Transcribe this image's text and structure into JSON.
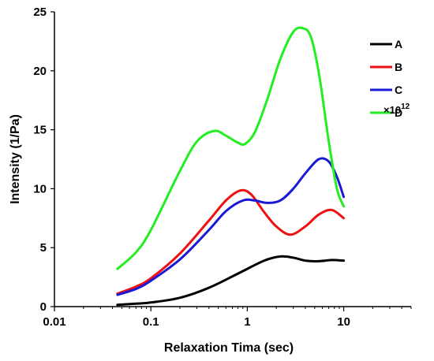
{
  "chart_data": {
    "type": "line",
    "xlabel": "Relaxation Tima (sec)",
    "ylabel": "Intensity (1/Pa)",
    "y_multiplier": "×10",
    "y_multiplier_exp": "12",
    "x_scale": "log",
    "xlim": [
      0.01,
      50
    ],
    "ylim": [
      0,
      25
    ],
    "x_ticks": [
      0.01,
      0.1,
      1,
      10
    ],
    "x_tick_labels": [
      "0.01",
      "0.1",
      "1",
      "10"
    ],
    "y_ticks": [
      0,
      5,
      10,
      15,
      20,
      25
    ],
    "y_tick_labels": [
      "0",
      "5",
      "10",
      "15",
      "20",
      "25"
    ],
    "grid": false,
    "legend_position": "top-right",
    "series": [
      {
        "name": "A",
        "color": "#000000",
        "x": [
          0.045,
          0.07,
          0.1,
          0.2,
          0.4,
          0.8,
          1.5,
          2.2,
          3.0,
          4.0,
          5.5,
          7.5,
          10
        ],
        "y": [
          0.15,
          0.25,
          0.35,
          0.75,
          1.6,
          2.8,
          3.9,
          4.25,
          4.15,
          3.9,
          3.85,
          3.95,
          3.9
        ]
      },
      {
        "name": "B",
        "color": "#ee1111",
        "x": [
          0.045,
          0.07,
          0.1,
          0.2,
          0.4,
          0.6,
          0.85,
          1.1,
          1.5,
          2.0,
          2.8,
          4.0,
          5.5,
          7.5,
          10
        ],
        "y": [
          1.1,
          1.7,
          2.4,
          4.5,
          7.3,
          9.0,
          9.85,
          9.5,
          8.0,
          6.8,
          6.1,
          6.8,
          7.8,
          8.2,
          7.5
        ]
      },
      {
        "name": "C",
        "color": "#1a1ad4",
        "x": [
          0.045,
          0.07,
          0.1,
          0.2,
          0.4,
          0.6,
          0.9,
          1.2,
          1.6,
          2.2,
          3.0,
          4.0,
          5.5,
          7.0,
          8.5,
          10
        ],
        "y": [
          1.0,
          1.5,
          2.2,
          4.0,
          6.5,
          8.1,
          9.0,
          9.0,
          8.8,
          9.0,
          10.0,
          11.3,
          12.5,
          12.3,
          11.0,
          9.3
        ]
      },
      {
        "name": "D",
        "color": "#22ee22",
        "x": [
          0.045,
          0.07,
          0.1,
          0.2,
          0.3,
          0.45,
          0.6,
          0.8,
          0.95,
          1.2,
          1.6,
          2.2,
          3.0,
          3.8,
          4.6,
          5.6,
          7.0,
          8.5,
          10
        ],
        "y": [
          3.2,
          4.6,
          6.5,
          11.5,
          14.0,
          14.9,
          14.5,
          13.9,
          13.8,
          14.8,
          17.5,
          21.0,
          23.3,
          23.6,
          22.8,
          19.5,
          14.0,
          10.0,
          8.5
        ]
      }
    ]
  }
}
